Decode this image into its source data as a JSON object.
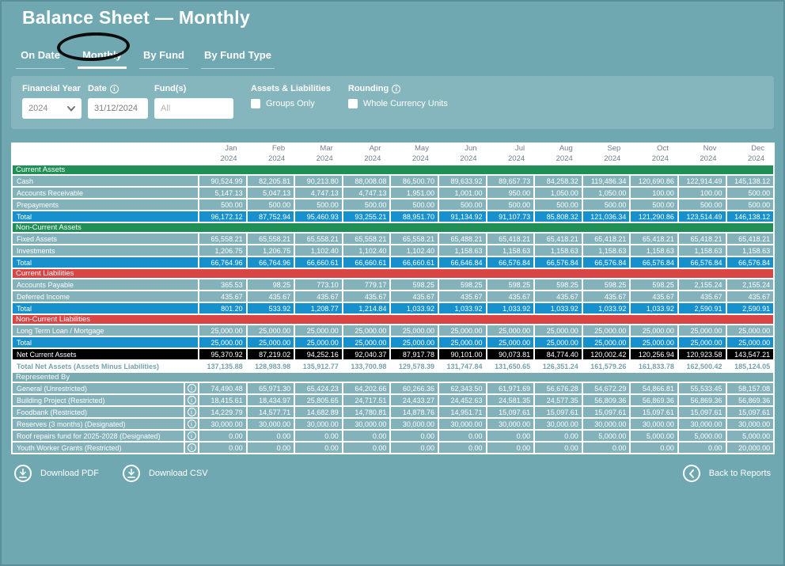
{
  "page": {
    "title": "Balance Sheet — Monthly"
  },
  "colors": {
    "page_bg": "#6fa8b0",
    "panel_bg": "#86b6bd",
    "data_row": "#84b2ba",
    "total_row": "#1791ce",
    "section_green": "#1f8f55",
    "section_red": "#d94444",
    "net_row": "#000000",
    "grand_text": "#76a3ac",
    "header_text": "#6e7f8a"
  },
  "tabs": [
    {
      "label": "On Date",
      "active": false
    },
    {
      "label": "Monthly",
      "active": true
    },
    {
      "label": "By Fund",
      "active": false
    },
    {
      "label": "By Fund Type",
      "active": false
    }
  ],
  "filters": {
    "financial_year": {
      "label": "Financial Year",
      "value": "2024"
    },
    "date": {
      "label": "Date",
      "value": "31/12/2024",
      "info_icon": "i"
    },
    "funds": {
      "label": "Fund(s)",
      "placeholder": "All"
    },
    "assets_liabilities": {
      "label": "Assets & Liabilities",
      "checkbox_label": "Groups Only",
      "checked": false
    },
    "rounding": {
      "label": "Rounding",
      "checkbox_label": "Whole Currency Units",
      "checked": false,
      "info_icon": "i"
    }
  },
  "table": {
    "months": [
      {
        "m": "Jan",
        "y": "2024"
      },
      {
        "m": "Feb",
        "y": "2024"
      },
      {
        "m": "Mar",
        "y": "2024"
      },
      {
        "m": "Apr",
        "y": "2024"
      },
      {
        "m": "May",
        "y": "2024"
      },
      {
        "m": "Jun",
        "y": "2024"
      },
      {
        "m": "Jul",
        "y": "2024"
      },
      {
        "m": "Aug",
        "y": "2024"
      },
      {
        "m": "Sep",
        "y": "2024"
      },
      {
        "m": "Oct",
        "y": "2024"
      },
      {
        "m": "Nov",
        "y": "2024"
      },
      {
        "m": "Dec",
        "y": "2024"
      }
    ],
    "rows": [
      {
        "type": "section",
        "style": "green",
        "label": "Current Assets"
      },
      {
        "type": "data",
        "label": "Cash",
        "values": [
          "90,524.99",
          "82,205.81",
          "90,213.80",
          "88,008.08",
          "86,500.70",
          "89,633.92",
          "89,657.73",
          "84,258.32",
          "119,486.34",
          "120,690.86",
          "122,914.49",
          "145,138.12"
        ]
      },
      {
        "type": "data",
        "label": "Accounts Receivable",
        "values": [
          "5,147.13",
          "5,047.13",
          "4,747.13",
          "4,747.13",
          "1,951.00",
          "1,001.00",
          "950.00",
          "1,050.00",
          "1,050.00",
          "100.00",
          "100.00",
          "500.00"
        ]
      },
      {
        "type": "data",
        "label": "Prepayments",
        "values": [
          "500.00",
          "500.00",
          "500.00",
          "500.00",
          "500.00",
          "500.00",
          "500.00",
          "500.00",
          "500.00",
          "500.00",
          "500.00",
          "500.00"
        ]
      },
      {
        "type": "total",
        "label": "Total",
        "values": [
          "96,172.12",
          "87,752.94",
          "95,460.93",
          "93,255.21",
          "88,951.70",
          "91,134.92",
          "91,107.73",
          "85,808.32",
          "121,036.34",
          "121,290.86",
          "123,514.49",
          "146,138.12"
        ]
      },
      {
        "type": "section",
        "style": "green",
        "label": "Non-Current Assets"
      },
      {
        "type": "data",
        "label": "Fixed Assets",
        "values": [
          "65,558.21",
          "65,558.21",
          "65,558.21",
          "65,558.21",
          "65,558.21",
          "65,488.21",
          "65,418.21",
          "65,418.21",
          "65,418.21",
          "65,418.21",
          "65,418.21",
          "65,418.21"
        ]
      },
      {
        "type": "data",
        "label": "Investments",
        "values": [
          "1,206.75",
          "1,206.75",
          "1,102.40",
          "1,102.40",
          "1,102.40",
          "1,158.63",
          "1,158.63",
          "1,158.63",
          "1,158.63",
          "1,158.63",
          "1,158.63",
          "1,158.63"
        ]
      },
      {
        "type": "total",
        "label": "Total",
        "values": [
          "66,764.96",
          "66,764.96",
          "66,660.61",
          "66,660.61",
          "66,660.61",
          "66,646.84",
          "66,576.84",
          "66,576.84",
          "66,576.84",
          "66,576.84",
          "66,576.84",
          "66,576.84"
        ]
      },
      {
        "type": "section",
        "style": "red",
        "label": "Current Liabilities"
      },
      {
        "type": "data",
        "label": "Accounts Payable",
        "values": [
          "365.53",
          "98.25",
          "773.10",
          "779.17",
          "598.25",
          "598.25",
          "598.25",
          "598.25",
          "598.25",
          "598.25",
          "2,155.24",
          "2,155.24"
        ]
      },
      {
        "type": "data",
        "label": "Deferred Income",
        "values": [
          "435.67",
          "435.67",
          "435.67",
          "435.67",
          "435.67",
          "435.67",
          "435.67",
          "435.67",
          "435.67",
          "435.67",
          "435.67",
          "435.67"
        ]
      },
      {
        "type": "total",
        "label": "Total",
        "values": [
          "801.20",
          "533.92",
          "1,208.77",
          "1,214.84",
          "1,033.92",
          "1,033.92",
          "1,033.92",
          "1,033.92",
          "1,033.92",
          "1,033.92",
          "2,590.91",
          "2,590.91"
        ]
      },
      {
        "type": "section",
        "style": "red",
        "label": "Non-Current Liabilities"
      },
      {
        "type": "data",
        "label": "Long Term Loan / Mortgage",
        "values": [
          "25,000.00",
          "25,000.00",
          "25,000.00",
          "25,000.00",
          "25,000.00",
          "25,000.00",
          "25,000.00",
          "25,000.00",
          "25,000.00",
          "25,000.00",
          "25,000.00",
          "25,000.00"
        ]
      },
      {
        "type": "total",
        "label": "Total",
        "values": [
          "25,000.00",
          "25,000.00",
          "25,000.00",
          "25,000.00",
          "25,000.00",
          "25,000.00",
          "25,000.00",
          "25,000.00",
          "25,000.00",
          "25,000.00",
          "25,000.00",
          "25,000.00"
        ]
      },
      {
        "type": "net",
        "label": "Net Current Assets",
        "values": [
          "95,370.92",
          "87,219.02",
          "94,252.16",
          "92,040.37",
          "87,917.78",
          "90,101.00",
          "90,073.81",
          "84,774.40",
          "120,002.42",
          "120,256.94",
          "120,923.58",
          "143,547.21"
        ]
      },
      {
        "type": "grand",
        "label": "Total Net Assets (Assets Minus Liabilities)",
        "values": [
          "137,135.88",
          "128,983.98",
          "135,912.77",
          "133,700.98",
          "129,578.39",
          "131,747.84",
          "131,650.65",
          "126,351.24",
          "161,579.26",
          "161,833.78",
          "162,500.42",
          "185,124.05"
        ]
      },
      {
        "type": "section",
        "style": "teal",
        "label": "Represented By"
      },
      {
        "type": "data",
        "label": "General (Unrestricted)",
        "info": true,
        "values": [
          "74,490.48",
          "65,971.30",
          "65,424.23",
          "64,202.66",
          "60,266.36",
          "62,343.50",
          "61,971.69",
          "56,676.28",
          "54,672.29",
          "54,866.81",
          "55,533.45",
          "58,157.08"
        ]
      },
      {
        "type": "data",
        "label": "Building Project (Restricted)",
        "info": true,
        "values": [
          "18,415.61",
          "18,434.97",
          "25,805.65",
          "24,717.51",
          "24,433.27",
          "24,452.63",
          "24,581.35",
          "24,577.35",
          "56,809.36",
          "56,869.36",
          "56,869.36",
          "56,869.36"
        ]
      },
      {
        "type": "data",
        "label": "Foodbank (Restricted)",
        "info": true,
        "values": [
          "14,229.79",
          "14,577.71",
          "14,682.89",
          "14,780.81",
          "14,878.76",
          "14,951.71",
          "15,097.61",
          "15,097.61",
          "15,097.61",
          "15,097.61",
          "15,097.61",
          "15,097.61"
        ]
      },
      {
        "type": "data",
        "label": "Reserves (3 months) (Designated)",
        "info": true,
        "values": [
          "30,000.00",
          "30,000.00",
          "30,000.00",
          "30,000.00",
          "30,000.00",
          "30,000.00",
          "30,000.00",
          "30,000.00",
          "30,000.00",
          "30,000.00",
          "30,000.00",
          "30,000.00"
        ]
      },
      {
        "type": "data",
        "label": "Roof repairs fund for 2025-2028 (Designated)",
        "info": true,
        "values": [
          "0.00",
          "0.00",
          "0.00",
          "0.00",
          "0.00",
          "0.00",
          "0.00",
          "0.00",
          "5,000.00",
          "5,000.00",
          "5,000.00",
          "5,000.00"
        ]
      },
      {
        "type": "data",
        "label": "Youth Worker Grants (Restricted)",
        "info": true,
        "values": [
          "0.00",
          "0.00",
          "0.00",
          "0.00",
          "0.00",
          "0.00",
          "0.00",
          "0.00",
          "0.00",
          "0.00",
          "0.00",
          "20,000.00"
        ]
      }
    ]
  },
  "footer": {
    "download_pdf": "Download PDF",
    "download_csv": "Download CSV",
    "back": "Back to Reports"
  }
}
